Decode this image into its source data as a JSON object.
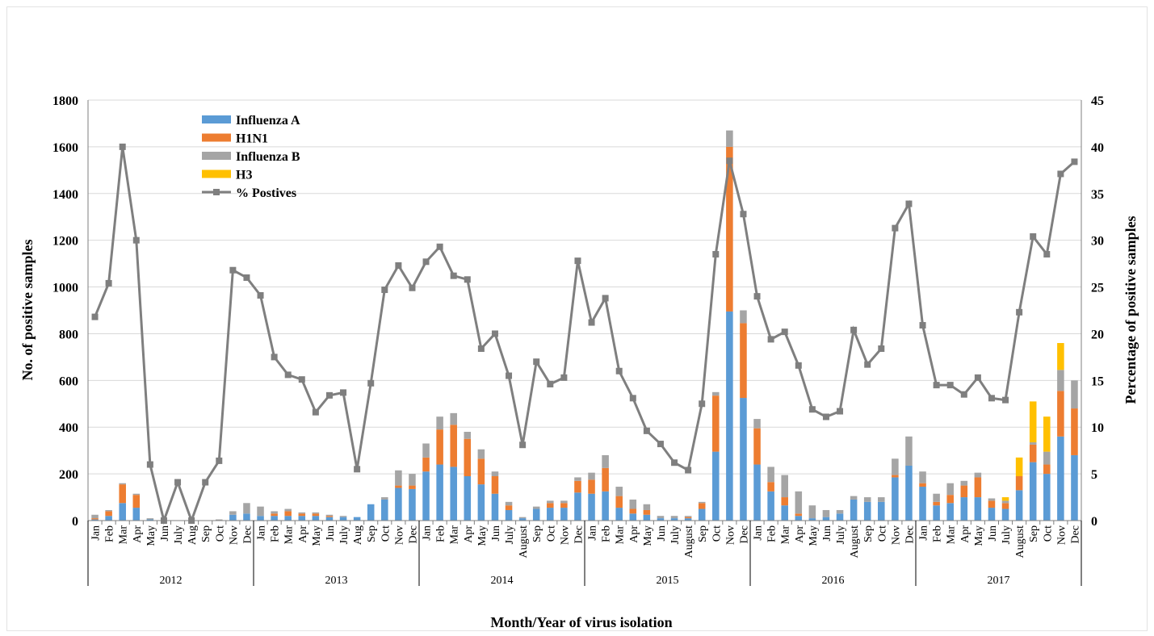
{
  "chart_data": {
    "type": "bar",
    "stacked": true,
    "xlabel": "Month/Year of virus isolation",
    "ylabel_left": "No. of positive samples",
    "ylabel_right": "Percentage of positive samples",
    "ylim_left": [
      0,
      1800
    ],
    "yticks_left": [
      "0",
      "200",
      "400",
      "600",
      "800",
      "1000",
      "1200",
      "1400",
      "1600",
      "1800"
    ],
    "ylim_right": [
      0,
      45
    ],
    "yticks_right": [
      "0",
      "5",
      "10",
      "15",
      "20",
      "25",
      "30",
      "35",
      "40",
      "45"
    ],
    "grid": true,
    "legend_position": "top-left",
    "groups": [
      {
        "year": "2012",
        "months": [
          "Jan",
          "Feb",
          "Mar",
          "Apr",
          "May",
          "Jun",
          "July",
          "Aug",
          "Sep",
          "Oct",
          "Nov",
          "Dec"
        ]
      },
      {
        "year": "2013",
        "months": [
          "Jan",
          "Feb",
          "Mar",
          "Apr",
          "May",
          "Jun",
          "July",
          "Aug",
          "Sep",
          "Oct",
          "Nov",
          "Dec"
        ]
      },
      {
        "year": "2014",
        "months": [
          "Jan",
          "Feb",
          "Mar",
          "Apr",
          "May",
          "Jun",
          "July",
          "August",
          "Sep",
          "Oct",
          "Nov",
          "Dec"
        ]
      },
      {
        "year": "2015",
        "months": [
          "Jan",
          "Feb",
          "Mar",
          "Apr",
          "May",
          "Jun",
          "July",
          "August",
          "Sep",
          "Oct",
          "Nov",
          "Dec"
        ]
      },
      {
        "year": "2016",
        "months": [
          "Jan",
          "Feb",
          "Mar",
          "Apr",
          "May",
          "Jun",
          "July",
          "August",
          "Sep",
          "Oct",
          "Nov",
          "Dec"
        ]
      },
      {
        "year": "2017",
        "months": [
          "Jan",
          "Feb",
          "Mar",
          "Apr",
          "May",
          "Jun",
          "July",
          "August",
          "Sep",
          "Oct",
          "Nov",
          "Dec"
        ]
      }
    ],
    "series": [
      {
        "name": "Influenza A",
        "color": "#5b9bd5",
        "axis": "left",
        "values": [
          5,
          20,
          75,
          55,
          5,
          0,
          0,
          0,
          0,
          0,
          25,
          30,
          20,
          20,
          20,
          20,
          20,
          15,
          15,
          15,
          70,
          90,
          140,
          135,
          210,
          240,
          230,
          190,
          155,
          115,
          45,
          10,
          50,
          55,
          55,
          120,
          115,
          125,
          55,
          30,
          25,
          10,
          10,
          10,
          50,
          295,
          895,
          525,
          240,
          125,
          65,
          20,
          10,
          15,
          30,
          90,
          80,
          80,
          185,
          235,
          145,
          65,
          75,
          100,
          100,
          55,
          50,
          130,
          250,
          200,
          360,
          280
        ]
      },
      {
        "name": "H1N1",
        "color": "#ed7d31",
        "axis": "left",
        "values": [
          5,
          20,
          80,
          55,
          0,
          0,
          0,
          0,
          0,
          0,
          0,
          0,
          0,
          10,
          20,
          10,
          10,
          5,
          0,
          0,
          0,
          0,
          10,
          15,
          60,
          150,
          180,
          160,
          110,
          75,
          20,
          0,
          0,
          20,
          20,
          50,
          60,
          100,
          50,
          20,
          20,
          0,
          0,
          5,
          25,
          240,
          705,
          320,
          155,
          40,
          35,
          10,
          0,
          0,
          0,
          0,
          0,
          0,
          10,
          0,
          15,
          15,
          35,
          50,
          85,
          30,
          25,
          60,
          75,
          40,
          195,
          200
        ]
      },
      {
        "name": "Influenza B",
        "color": "#a5a5a5",
        "axis": "left",
        "values": [
          15,
          5,
          5,
          5,
          5,
          0,
          0,
          0,
          0,
          5,
          15,
          45,
          40,
          10,
          10,
          5,
          5,
          5,
          5,
          0,
          0,
          10,
          65,
          50,
          60,
          55,
          50,
          30,
          40,
          20,
          15,
          5,
          10,
          10,
          10,
          15,
          30,
          55,
          40,
          40,
          25,
          10,
          10,
          5,
          5,
          15,
          70,
          55,
          40,
          65,
          95,
          95,
          55,
          30,
          15,
          15,
          20,
          20,
          70,
          125,
          50,
          35,
          50,
          20,
          20,
          10,
          10,
          0,
          10,
          55,
          90,
          120
        ]
      },
      {
        "name": "H3",
        "color": "#ffc000",
        "axis": "left",
        "values": [
          0,
          0,
          0,
          0,
          0,
          0,
          0,
          0,
          0,
          0,
          0,
          0,
          0,
          0,
          0,
          0,
          0,
          0,
          0,
          0,
          0,
          0,
          0,
          0,
          0,
          0,
          0,
          0,
          0,
          0,
          0,
          0,
          0,
          0,
          0,
          0,
          0,
          0,
          0,
          0,
          0,
          0,
          0,
          0,
          0,
          0,
          0,
          0,
          0,
          0,
          0,
          0,
          0,
          0,
          0,
          0,
          0,
          0,
          0,
          0,
          0,
          0,
          0,
          0,
          0,
          0,
          15,
          80,
          175,
          150,
          115,
          0
        ]
      },
      {
        "name": "% Postives",
        "color": "#7f7f7f",
        "axis": "right",
        "type": "line",
        "values": [
          21.8,
          25.4,
          40,
          30,
          6,
          0,
          4.1,
          0,
          4.1,
          6.4,
          26.8,
          26,
          24.1,
          17.5,
          15.6,
          15.1,
          11.6,
          13.4,
          13.7,
          5.5,
          14.7,
          24.7,
          27.3,
          24.9,
          27.7,
          29.3,
          26.2,
          25.8,
          18.4,
          20,
          15.5,
          8.1,
          17,
          14.6,
          15.3,
          27.8,
          21.2,
          23.8,
          16,
          13.1,
          9.6,
          8.2,
          6.2,
          5.4,
          12.5,
          28.5,
          38.5,
          32.8,
          24,
          19.4,
          20.2,
          16.6,
          11.9,
          11.1,
          11.7,
          20.4,
          16.7,
          18.4,
          31.3,
          33.9,
          20.9,
          14.5,
          14.5,
          13.5,
          15.3,
          13.1,
          12.9,
          22.3,
          30.4,
          28.5,
          37.1,
          38.4
        ]
      }
    ]
  }
}
